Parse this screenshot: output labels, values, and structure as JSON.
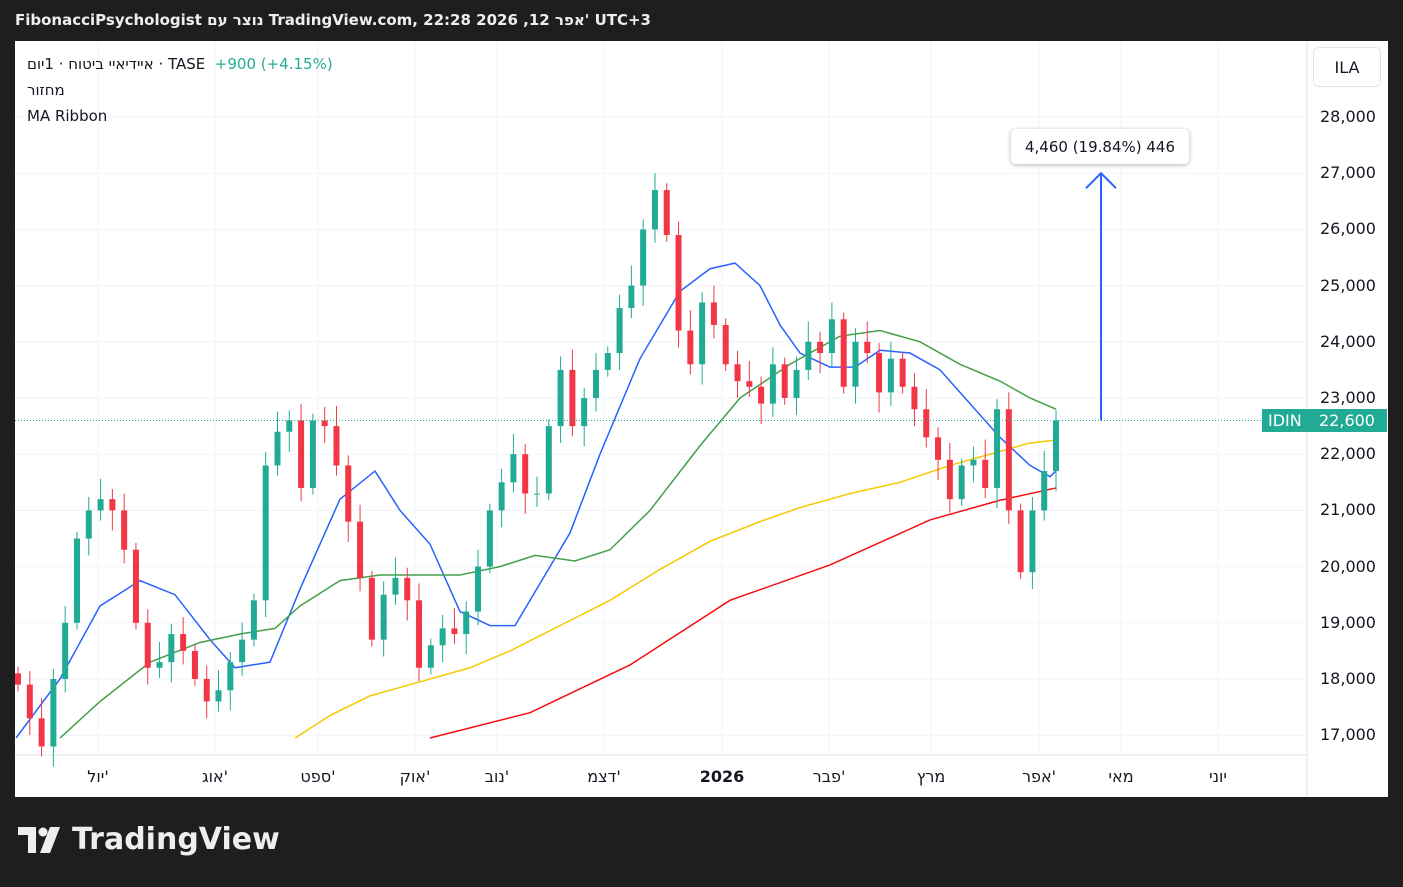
{
  "header": "FibonacciPsychologist נוצר עם TradingView.com, 22:28 2026 ,12 אפר' UTC+3",
  "legend": {
    "symbol": "איידיאיי ביטוח · 1יום · TASE",
    "change": "+900 (+4.15%)",
    "volume": "מחזור",
    "indicator": "MA Ribbon"
  },
  "currency": "ILA",
  "ticker": "IDIN",
  "last_price_label": "22,600",
  "measure_label": "4,460 (19.84%) 446",
  "logo": "TradingView",
  "colors": {
    "up": "#22ab94",
    "down": "#f23645",
    "ma1": "#2962ff",
    "ma2": "#43a047",
    "ma3": "#f5c800",
    "ma4": "#f70d0d",
    "arrow": "#2962ff"
  },
  "chart_data": {
    "type": "candlestick",
    "ylim": [
      16700,
      28900
    ],
    "xlim": [
      0,
      129.1
    ],
    "y_ticks": [
      {
        "v": 28000,
        "label": "28,000"
      },
      {
        "v": 27000,
        "label": "27,000"
      },
      {
        "v": 26000,
        "label": "26,000"
      },
      {
        "v": 25000,
        "label": "25,000"
      },
      {
        "v": 24000,
        "label": "24,000"
      },
      {
        "v": 23000,
        "label": "23,000"
      },
      {
        "v": 22000,
        "label": "22,000"
      },
      {
        "v": 21000,
        "label": "21,000"
      },
      {
        "v": 20000,
        "label": "20,000"
      },
      {
        "v": 19000,
        "label": "19,000"
      },
      {
        "v": 18000,
        "label": "18,000"
      },
      {
        "v": 17000,
        "label": "17,000"
      }
    ],
    "x_ticks": [
      {
        "b": 8.2,
        "label": "יול'"
      },
      {
        "b": 19.9,
        "label": "אוג'"
      },
      {
        "b": 30.2,
        "label": "ספט'"
      },
      {
        "b": 39.9,
        "label": "אוק'"
      },
      {
        "b": 48.1,
        "label": "נוב'"
      },
      {
        "b": 58.8,
        "label": "דצמ'"
      },
      {
        "b": 70.6,
        "label": "2026",
        "bold": true
      },
      {
        "b": 81.3,
        "label": "פבר'"
      },
      {
        "b": 91.5,
        "label": "מרץ"
      },
      {
        "b": 102.3,
        "label": "אפר'"
      },
      {
        "b": 110.5,
        "label": "מאי"
      },
      {
        "b": 120.2,
        "label": "יוני"
      }
    ],
    "candle_range": [
      0.2,
      104
    ],
    "closes": [
      17900,
      17300,
      16800,
      18000,
      19000,
      20500,
      21000,
      21200,
      21000,
      20300,
      19000,
      18200,
      18300,
      18800,
      18500,
      18000,
      17600,
      17800,
      18300,
      18700,
      19400,
      21800,
      22400,
      22600,
      21400,
      22600,
      22500,
      21800,
      20800,
      19800,
      18700,
      19500,
      19800,
      19400,
      18200,
      18600,
      18900,
      18800,
      19200,
      20000,
      21000,
      21500,
      22000,
      21300,
      21300,
      22500,
      23500,
      22500,
      23000,
      23500,
      23800,
      24600,
      25000,
      26000,
      26700,
      25900,
      24200,
      23600,
      24700,
      24300,
      23600,
      23300,
      23200,
      22900,
      23600,
      23000,
      23500,
      24000,
      23800,
      24400,
      23200,
      24000,
      23800,
      23100,
      23700,
      23200,
      22800,
      22300,
      21900,
      21200,
      21800,
      21900,
      21400,
      22800,
      21000,
      19900,
      21000,
      21700,
      22600
    ],
    "last_price": 22600,
    "measure": {
      "from": 22600,
      "to": 27000,
      "at_bar": 108.5
    },
    "ma_ribbon": [
      {
        "name": "ma1",
        "points": [
          [
            0,
            16950
          ],
          [
            4.4,
            18000
          ],
          [
            8.4,
            19300
          ],
          [
            12.4,
            19750
          ],
          [
            15.9,
            19500
          ],
          [
            19.4,
            18700
          ],
          [
            21.9,
            18200
          ],
          [
            25.4,
            18300
          ],
          [
            28.4,
            19600
          ],
          [
            32.4,
            21200
          ],
          [
            35.9,
            21700
          ],
          [
            38.4,
            21000
          ],
          [
            41.4,
            20400
          ],
          [
            44.4,
            19200
          ],
          [
            47.4,
            18950
          ],
          [
            49.9,
            18950
          ],
          [
            52.4,
            19700
          ],
          [
            55.4,
            20600
          ],
          [
            58.4,
            22000
          ],
          [
            62.4,
            23700
          ],
          [
            66.4,
            24900
          ],
          [
            69.4,
            25300
          ],
          [
            71.9,
            25400
          ],
          [
            74.4,
            25000
          ],
          [
            76.4,
            24300
          ],
          [
            78.4,
            23800
          ],
          [
            81.4,
            23550
          ],
          [
            83.9,
            23550
          ],
          [
            86.4,
            23850
          ],
          [
            89.4,
            23800
          ],
          [
            92.4,
            23500
          ],
          [
            95.4,
            22900
          ],
          [
            98.4,
            22300
          ],
          [
            101.4,
            21800
          ],
          [
            103.4,
            21600
          ],
          [
            104,
            21700
          ]
        ]
      },
      {
        "name": "ma2",
        "points": [
          [
            4.4,
            16950
          ],
          [
            8.4,
            17600
          ],
          [
            13.4,
            18300
          ],
          [
            18.4,
            18650
          ],
          [
            22.4,
            18800
          ],
          [
            25.9,
            18900
          ],
          [
            28.4,
            19300
          ],
          [
            32.4,
            19750
          ],
          [
            36.4,
            19850
          ],
          [
            40.4,
            19850
          ],
          [
            44.4,
            19850
          ],
          [
            48.4,
            20000
          ],
          [
            51.9,
            20200
          ],
          [
            55.9,
            20100
          ],
          [
            59.4,
            20300
          ],
          [
            63.4,
            21000
          ],
          [
            68.4,
            22150
          ],
          [
            72.4,
            23000
          ],
          [
            77.4,
            23600
          ],
          [
            82.4,
            24100
          ],
          [
            86.4,
            24200
          ],
          [
            90.4,
            24000
          ],
          [
            94.4,
            23600
          ],
          [
            98.4,
            23300
          ],
          [
            101.4,
            23000
          ],
          [
            104,
            22800
          ]
        ]
      },
      {
        "name": "ma3",
        "points": [
          [
            27.9,
            16950
          ],
          [
            31.4,
            17350
          ],
          [
            35.4,
            17700
          ],
          [
            40.4,
            17950
          ],
          [
            45.4,
            18200
          ],
          [
            49.4,
            18500
          ],
          [
            54.4,
            18950
          ],
          [
            59.4,
            19400
          ],
          [
            64.4,
            19950
          ],
          [
            69.4,
            20450
          ],
          [
            74.4,
            20800
          ],
          [
            78.4,
            21050
          ],
          [
            83.4,
            21300
          ],
          [
            88.4,
            21500
          ],
          [
            93.4,
            21800
          ],
          [
            98.4,
            22050
          ],
          [
            101.4,
            22200
          ],
          [
            104,
            22250
          ]
        ]
      },
      {
        "name": "ma4",
        "points": [
          [
            41.4,
            16950
          ],
          [
            51.4,
            17400
          ],
          [
            61.4,
            18250
          ],
          [
            71.4,
            19400
          ],
          [
            81.4,
            20030
          ],
          [
            91.4,
            20830
          ],
          [
            98.4,
            21180
          ],
          [
            104,
            21400
          ]
        ]
      }
    ]
  }
}
